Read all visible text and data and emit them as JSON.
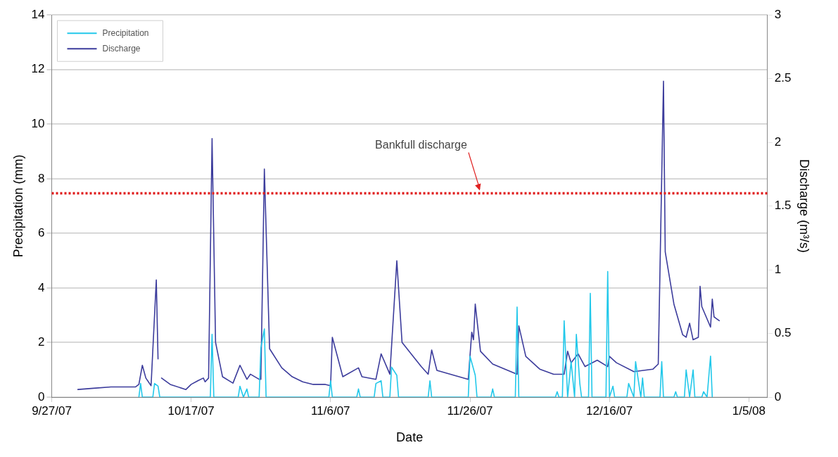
{
  "chart_data": {
    "type": "line",
    "xlabel": "Date",
    "ylabel": "Precipitation (mm)",
    "y2label": "Discharge (m³/s)",
    "xlim": [
      "2007-09-27",
      "2008-01-07T16:00"
    ],
    "xticks": [
      {
        "value": "2007-09-27",
        "label": "9/27/07"
      },
      {
        "value": "2007-10-17",
        "label": "10/17/07"
      },
      {
        "value": "2007-11-06",
        "label": "11/6/07"
      },
      {
        "value": "2007-11-26",
        "label": "11/26/07"
      },
      {
        "value": "2007-12-16",
        "label": "12/16/07"
      },
      {
        "value": "2008-01-05",
        "label": "1/5/08"
      }
    ],
    "ylim": [
      0,
      14
    ],
    "yticks": [
      0,
      2,
      4,
      6,
      8,
      10,
      12,
      14
    ],
    "y2lim": [
      0,
      3
    ],
    "y2ticks": [
      0,
      0.5,
      1,
      1.5,
      2,
      2.5,
      3
    ],
    "grid": "y",
    "legend": "top left",
    "marker": "none",
    "line_style": "solid",
    "ref_lines": [
      {
        "axis": "y2",
        "value": 1.6,
        "label": "Bankfull discharge",
        "color": "#e02020",
        "line_style": "dotted"
      }
    ],
    "series": [
      {
        "name": "Precipitation",
        "color": "#22c8ea",
        "axis": "y",
        "x": [
          "2007-10-09T12:00",
          "2007-10-09T18:00",
          "2007-10-10T00:00",
          "2007-10-11T12:00",
          "2007-10-11T18:00",
          "2007-10-12T06:00",
          "2007-10-12T12:00",
          "2007-10-19T18:00",
          "2007-10-20T00:00",
          "2007-10-20T06:00",
          "2007-10-23T18:00",
          "2007-10-24T00:00",
          "2007-10-24T12:00",
          "2007-10-25T00:00",
          "2007-10-25T06:00",
          "2007-10-26T18:00",
          "2007-10-27T00:00",
          "2007-10-27T12:00",
          "2007-10-27T18:00",
          "2007-11-05T18:00",
          "2007-11-06T00:00",
          "2007-11-06T06:00",
          "2007-11-09T18:00",
          "2007-11-10T00:00",
          "2007-11-10T06:00",
          "2007-11-12T06:00",
          "2007-11-12T12:00",
          "2007-11-13T06:00",
          "2007-11-13T12:00",
          "2007-11-14T12:00",
          "2007-11-14T18:00",
          "2007-11-15T12:00",
          "2007-11-15T18:00",
          "2007-11-20T00:00",
          "2007-11-20T06:00",
          "2007-11-20T12:00",
          "2007-11-25T18:00",
          "2007-11-26T00:00",
          "2007-11-26T18:00",
          "2007-11-27T00:00",
          "2007-11-29T00:00",
          "2007-11-29T06:00",
          "2007-11-29T12:00",
          "2007-12-02T12:00",
          "2007-12-02T18:00",
          "2007-12-03T00:00",
          "2007-12-08T06:00",
          "2007-12-08T12:00",
          "2007-12-08T18:00",
          "2007-12-09T06:00",
          "2007-12-09T12:00",
          "2007-12-10T00:00",
          "2007-12-10T12:00",
          "2007-12-11T00:00",
          "2007-12-11T06:00",
          "2007-12-11T18:00",
          "2007-12-12T00:00",
          "2007-12-13T00:00",
          "2007-12-13T06:00",
          "2007-12-13T12:00",
          "2007-12-15T12:00",
          "2007-12-15T18:00",
          "2007-12-16T00:00",
          "2007-12-16T12:00",
          "2007-12-16T18:00",
          "2007-12-18T12:00",
          "2007-12-18T18:00",
          "2007-12-19T12:00",
          "2007-12-19T18:00",
          "2007-12-20T12:00",
          "2007-12-20T18:00",
          "2007-12-21T00:00",
          "2007-12-23T06:00",
          "2007-12-23T12:00",
          "2007-12-23T18:00",
          "2007-12-25T06:00",
          "2007-12-25T12:00",
          "2007-12-25T18:00",
          "2007-12-26T18:00",
          "2007-12-27T00:00",
          "2007-12-27T12:00",
          "2007-12-28T00:00",
          "2007-12-28T06:00",
          "2007-12-29T06:00",
          "2007-12-29T12:00",
          "2007-12-30T00:00",
          "2007-12-30T12:00",
          "2007-12-30T18:00"
        ],
        "values": [
          0,
          0.5,
          0,
          0,
          0.5,
          0.4,
          0,
          0,
          2.3,
          0,
          0,
          0.4,
          0,
          0.3,
          0,
          0,
          1.8,
          2.5,
          0,
          0,
          0.6,
          0,
          0,
          0.3,
          0,
          0,
          0.5,
          0.6,
          0,
          0,
          1.1,
          0.8,
          0,
          0,
          0.6,
          0,
          0,
          1.5,
          0.8,
          0,
          0,
          0.3,
          0,
          0,
          3.3,
          0,
          0,
          0.2,
          0,
          0,
          2.8,
          0,
          1.3,
          0,
          2.3,
          0.5,
          0,
          0,
          3.8,
          0,
          0,
          4.6,
          0,
          0.4,
          0,
          0,
          0.5,
          0,
          1.3,
          0,
          0.7,
          0,
          0,
          1.3,
          0,
          0,
          0.2,
          0,
          0,
          1,
          0,
          1,
          0,
          0,
          0.2,
          0,
          1.5,
          0
        ]
      },
      {
        "name": "Discharge",
        "color": "#3c3c9c",
        "axis": "y2",
        "x": [
          "2007-09-30T18:00",
          "2007-10-03T00:00",
          "2007-10-05T12:00",
          "2007-10-09T00:00",
          "2007-10-09T12:00",
          "2007-10-10T00:00",
          "2007-10-10T12:00",
          "2007-10-11T06:00",
          "2007-10-12T00:00",
          "2007-10-12T06:00",
          "2007-10-12T12:00",
          "2007-10-12T18:00",
          "2007-10-14T00:00",
          "2007-10-16T06:00",
          "2007-10-17T00:00",
          "2007-10-18T00:00",
          "2007-10-18T18:00",
          "2007-10-19T00:00",
          "2007-10-19T12:00",
          "2007-10-20T00:00",
          "2007-10-20T12:00",
          "2007-10-21T12:00",
          "2007-10-23T00:00",
          "2007-10-24T00:00",
          "2007-10-25T00:00",
          "2007-10-25T12:00",
          "2007-10-26T18:00",
          "2007-10-27T00:00",
          "2007-10-27T12:00",
          "2007-10-28T06:00",
          "2007-10-30T00:00",
          "2007-10-31T12:00",
          "2007-11-02T00:00",
          "2007-11-03T12:00",
          "2007-11-05T06:00",
          "2007-11-06T00:00",
          "2007-11-06T06:00",
          "2007-11-07T18:00",
          "2007-11-10T00:00",
          "2007-11-10T12:00",
          "2007-11-12T12:00",
          "2007-11-13T06:00",
          "2007-11-14T12:00",
          "2007-11-15T12:00",
          "2007-11-16T06:00",
          "2007-11-19T00:00",
          "2007-11-20T00:00",
          "2007-11-20T12:00",
          "2007-11-21T06:00",
          "2007-11-25T18:00",
          "2007-11-26T06:00",
          "2007-11-26T12:00",
          "2007-11-26T18:00",
          "2007-11-27T12:00",
          "2007-11-29T06:00",
          "2007-12-02T18:00",
          "2007-12-03T00:00",
          "2007-12-04T00:00",
          "2007-12-06T00:00",
          "2007-12-08T00:00",
          "2007-12-09T12:00",
          "2007-12-10T00:00",
          "2007-12-10T12:00",
          "2007-12-11T12:00",
          "2007-12-12T12:00",
          "2007-12-14T06:00",
          "2007-12-15T18:00",
          "2007-12-16T00:00",
          "2007-12-17T00:00",
          "2007-12-19T12:00",
          "2007-12-22T06:00",
          "2007-12-23T00:00",
          "2007-12-23T18:00",
          "2007-12-24T00:00",
          "2007-12-25T06:00",
          "2007-12-26T12:00",
          "2007-12-27T00:00",
          "2007-12-27T12:00",
          "2007-12-28T00:00",
          "2007-12-28T18:00",
          "2007-12-29T00:00",
          "2007-12-29T06:00",
          "2007-12-30T12:00",
          "2007-12-30T18:00",
          "2007-12-31T00:00",
          "2007-12-31T18:00"
        ],
        "values": [
          0.06,
          0.07,
          0.08,
          0.08,
          0.1,
          0.25,
          0.15,
          0.09,
          0.92,
          0.3,
          null,
          0.15,
          0.1,
          0.06,
          0.1,
          0.13,
          0.15,
          0.12,
          0.15,
          2.03,
          0.43,
          0.16,
          0.11,
          0.25,
          0.14,
          0.18,
          0.14,
          0.14,
          1.79,
          0.38,
          0.23,
          0.16,
          0.12,
          0.1,
          0.1,
          0.09,
          0.47,
          0.16,
          0.23,
          0.16,
          0.14,
          0.34,
          0.18,
          1.07,
          0.43,
          0.24,
          0.18,
          0.37,
          0.21,
          0.14,
          0.51,
          0.45,
          0.73,
          0.36,
          0.26,
          0.18,
          0.56,
          0.32,
          0.22,
          0.18,
          0.18,
          0.36,
          0.27,
          0.34,
          0.24,
          0.29,
          0.24,
          0.32,
          0.27,
          0.2,
          0.22,
          0.26,
          2.48,
          1.14,
          0.73,
          0.49,
          0.47,
          0.58,
          0.45,
          0.47,
          0.87,
          0.71,
          0.55,
          0.77,
          0.63,
          0.6
        ]
      }
    ]
  }
}
